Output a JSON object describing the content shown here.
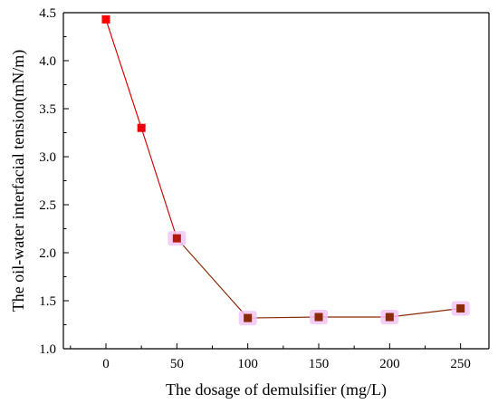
{
  "chart_data": {
    "type": "line",
    "title": "",
    "xlabel": "The dosage of demulsifier (mg/L)",
    "ylabel": "The oil-water interfacial tension(mN/m)",
    "xlim": [
      -30,
      270
    ],
    "ylim": [
      1.0,
      4.5
    ],
    "xticks": [
      "0",
      "50",
      "100",
      "150",
      "200",
      "250"
    ],
    "yticks": [
      "1.0",
      "1.5",
      "2.0",
      "2.5",
      "3.0",
      "3.5",
      "4.0",
      "4.5"
    ],
    "grid": false,
    "legend": "none",
    "series": [
      {
        "x": [
          0,
          25,
          50,
          100,
          150,
          200,
          250
        ],
        "values": [
          4.43,
          3.3,
          2.15,
          1.32,
          1.33,
          1.33,
          1.42
        ],
        "marker_colors": [
          "#ff0000",
          "#e8000a",
          "#b5180c",
          "#8b2a08",
          "#8b2a08",
          "#8b2a08",
          "#8b2a08"
        ],
        "line_colors": [
          "#e00000",
          "#c81010",
          "#8b2a08",
          "#8b2a08",
          "#8b2a08",
          "#8b2a08"
        ],
        "halo_color": "#f3c6f3"
      }
    ]
  }
}
